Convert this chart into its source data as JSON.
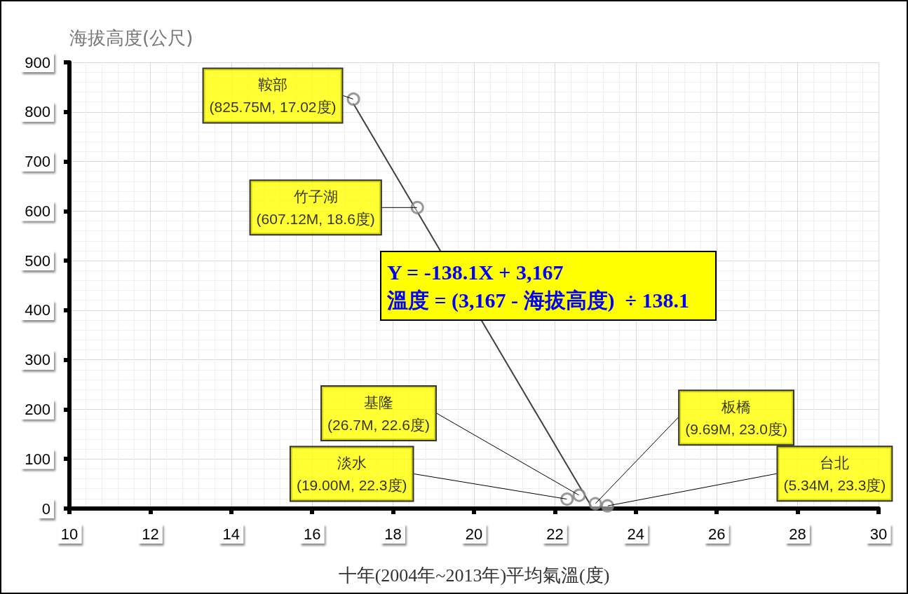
{
  "chart_data": {
    "type": "scatter",
    "xlabel": "十年(2004年~2013年)平均氣溫(度)",
    "ylabel": "海拔高度(公尺)",
    "xlim": [
      10,
      30
    ],
    "xticks": [
      10,
      12,
      14,
      16,
      18,
      20,
      22,
      24,
      26,
      28,
      30
    ],
    "ylim": [
      0,
      900
    ],
    "yticks": [
      0,
      100,
      200,
      300,
      400,
      500,
      600,
      700,
      800,
      900
    ],
    "grid": true,
    "marker": "circle",
    "series": [
      {
        "color": "#808080",
        "x": [
          17.02,
          18.6,
          22.6,
          22.3,
          23.0,
          23.3
        ],
        "values": [
          825.75,
          607.12,
          26.7,
          19.0,
          9.69,
          5.34
        ]
      },
      {
        "type": "line",
        "color": "#404040",
        "marker": "none",
        "x": [
          17.02,
          22.9
        ],
        "values": [
          816.6,
          4.5
        ]
      }
    ],
    "annotations": [
      {
        "text": "鞍部\n(825.75M, 17.02度)",
        "x": 17.02,
        "y": 825.75
      },
      {
        "text": "竹子湖\n(607.12M, 18.6度)",
        "x": 18.6,
        "y": 607.12
      },
      {
        "text": "基隆\n(26.7M, 22.6度)",
        "x": 22.6,
        "y": 26.7
      },
      {
        "text": "淡水\n(19.00M, 22.3度)",
        "x": 22.3,
        "y": 19.0
      },
      {
        "text": "板橋\n(9.69M, 23.0度)",
        "x": 23.0,
        "y": 9.69
      },
      {
        "text": "台北\n(5.34M, 23.3度)",
        "x": 23.3,
        "y": 5.34
      },
      "Y = -138.1X + 3,167\n溫度 = (3,167 - 海拔高度)  ÷ 138.1"
    ]
  }
}
